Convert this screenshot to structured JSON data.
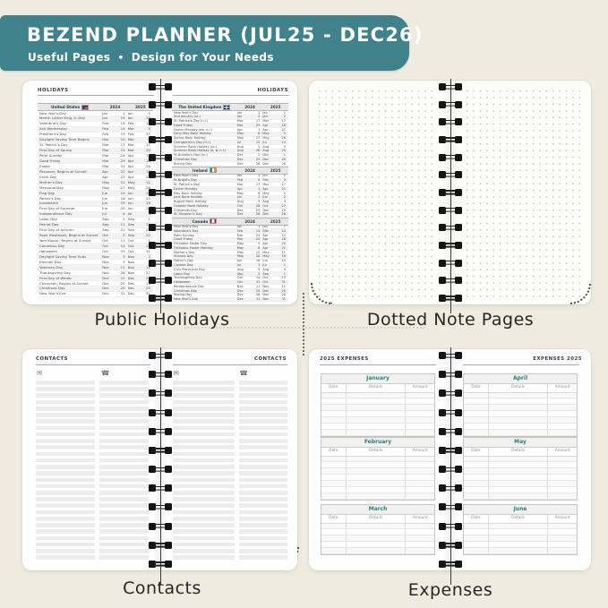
{
  "banner": {
    "title": "BEZEND PLANNER (JUL25 - DEC26)",
    "subtitle_left": "Useful Pages",
    "subtitle_sep": "•",
    "subtitle_right": "Design for Your Needs",
    "bg_color": "#3f828b",
    "text_color": "#ffffff"
  },
  "captions": {
    "holidays": "Public Holidays",
    "dotted": "Dotted Note Pages",
    "contacts": "Contacts",
    "expenses": "Expenses"
  },
  "holidays_spread": {
    "left_header": "HOLIDAYS",
    "right_header": "HOLIDAYS",
    "year_cols": [
      "2024",
      "2025"
    ],
    "tables": [
      {
        "country": "United States",
        "flag": "us-flag-icon",
        "flag_class": "flag-us",
        "rows": [
          [
            "New Year's Day",
            "Jan",
            "1",
            "Jan",
            "1"
          ],
          [
            "Martin Luther King, Jr. Day",
            "Jan",
            "15",
            "Jan",
            "20"
          ],
          [
            "Valentine's Day",
            "Feb",
            "14",
            "Feb",
            "14"
          ],
          [
            "Ash Wednesday",
            "Feb",
            "14",
            "Mar",
            "5"
          ],
          [
            "President's Day",
            "Feb",
            "19",
            "Feb",
            "17"
          ],
          [
            "Daylight Saving Time Begins",
            "Mar",
            "10",
            "Mar",
            "9"
          ],
          [
            "St. Patrick's Day",
            "Mar",
            "17",
            "Mar",
            "17"
          ],
          [
            "First Day of Spring",
            "Mar",
            "19",
            "Mar",
            "20"
          ],
          [
            "Palm Sunday",
            "Mar",
            "24",
            "Apr",
            "13"
          ],
          [
            "Good Friday",
            "Mar",
            "29",
            "Apr",
            "18"
          ],
          [
            "Easter",
            "Mar",
            "31",
            "Apr",
            "20"
          ],
          [
            "Passover, Begins at Sunset",
            "Apr",
            "22",
            "Apr",
            "12"
          ],
          [
            "Earth Day",
            "Apr",
            "22",
            "Apr",
            "22"
          ],
          [
            "Mother's Day",
            "May",
            "12",
            "May",
            "11"
          ],
          [
            "Memorial Day",
            "May",
            "27",
            "May",
            "26"
          ],
          [
            "Flag Day",
            "Jun",
            "14",
            "Jun",
            "14"
          ],
          [
            "Father's Day",
            "Jun",
            "16",
            "Jun",
            "15"
          ],
          [
            "Juneteenth",
            "Jun",
            "19",
            "Jun",
            "19"
          ],
          [
            "First Day of Summer",
            "Jun",
            "20",
            "Jun",
            "20"
          ],
          [
            "Independence Day",
            "Jul",
            "4",
            "Jul",
            "4"
          ],
          [
            "Labor Day",
            "Sep",
            "2",
            "Sep",
            "1"
          ],
          [
            "Patriot Day",
            "Sep",
            "11",
            "Sep",
            "11"
          ],
          [
            "First Day of Autumn",
            "Sep",
            "22",
            "Sep",
            "22"
          ],
          [
            "Rosh Hashanah, Begins at Sunset",
            "Oct",
            "2",
            "Sep",
            "22"
          ],
          [
            "Yom Kippur, Begins at Sunset",
            "Oct",
            "11",
            "Oct",
            "1"
          ],
          [
            "Columbus Day",
            "Oct",
            "14",
            "Oct",
            "13"
          ],
          [
            "Halloween",
            "Oct",
            "31",
            "Oct",
            "31"
          ],
          [
            "Daylight Saving Time Ends",
            "Nov",
            "3",
            "Nov",
            "2"
          ],
          [
            "Election Day",
            "Nov",
            "5",
            "Nov",
            "4"
          ],
          [
            "Veterans Day",
            "Nov",
            "11",
            "Nov",
            "11"
          ],
          [
            "Thanksgiving Day",
            "Nov",
            "28",
            "Nov",
            "27"
          ],
          [
            "First Day of Winter",
            "Dec",
            "21",
            "Dec",
            "21"
          ],
          [
            "Chanukah, Begins at Sunset",
            "Dec",
            "25",
            "Dec",
            "14"
          ],
          [
            "Christmas Day",
            "Dec",
            "25",
            "Dec",
            "25"
          ],
          [
            "New Year's Eve",
            "Dec",
            "31",
            "Dec",
            "31"
          ]
        ]
      },
      {
        "country": "The United Kingdom",
        "flag": "uk-flag-icon",
        "flag_class": "flag-uk",
        "rows": [
          [
            "New Year's Day",
            "Jan",
            "1",
            "Jan",
            "1"
          ],
          [
            "2nd January (sc.)",
            "Jan",
            "2",
            "Jan",
            "2"
          ],
          [
            "St. Patrick's Day (n.i.)",
            "Mar",
            "17",
            "Mar",
            "17"
          ],
          [
            "Good Friday",
            "Mar",
            "29",
            "Apr",
            "18"
          ],
          [
            "Easter Monday (ew. n.i.)",
            "Apr",
            "1",
            "Apr",
            "21"
          ],
          [
            "Early May Bank Holiday",
            "May",
            "6",
            "May",
            "5"
          ],
          [
            "Spring Bank Holiday",
            "May",
            "27",
            "May",
            "26"
          ],
          [
            "Orangemen's Day (n.i.)",
            "Jul",
            "12",
            "Jul",
            "14"
          ],
          [
            "Summer Bank Holiday (sc.)",
            "Aug",
            "5",
            "Aug",
            "4"
          ],
          [
            "Summer Bank Holiday (e. w. n.i.)",
            "Aug",
            "26",
            "Aug",
            "25"
          ],
          [
            "St Andrew's Day (sc.)",
            "Dec",
            "2",
            "Dec",
            "1"
          ],
          [
            "Christmas Day",
            "Dec",
            "25",
            "Dec",
            "25"
          ],
          [
            "Boxing Day",
            "Dec",
            "26",
            "Dec",
            "26"
          ]
        ]
      },
      {
        "country": "Ireland",
        "flag": "ireland-flag-icon",
        "flag_class": "flag-ie",
        "rows": [
          [
            "New Year's Day",
            "Jan",
            "1",
            "Jan",
            "1"
          ],
          [
            "St Brigid's Day",
            "Feb",
            "5",
            "Feb",
            "3"
          ],
          [
            "St. Patrick's Day",
            "Mar",
            "17",
            "Mar",
            "17"
          ],
          [
            "Easter Monday",
            "Apr",
            "1",
            "Apr",
            "21"
          ],
          [
            "May Bank Holiday",
            "May",
            "6",
            "May",
            "5"
          ],
          [
            "June Bank Holiday",
            "Jun",
            "3",
            "Jun",
            "2"
          ],
          [
            "August Bank Holiday",
            "Aug",
            "5",
            "Aug",
            "4"
          ],
          [
            "October Bank Holiday",
            "Oct",
            "28",
            "Oct",
            "27"
          ],
          [
            "Christmas Day",
            "Dec",
            "25",
            "Dec",
            "25"
          ],
          [
            "St. Stephen's Day",
            "Dec",
            "26",
            "Dec",
            "26"
          ]
        ]
      },
      {
        "country": "Canada",
        "flag": "canada-flag-icon",
        "flag_class": "flag-ca",
        "rows": [
          [
            "New Year's Day",
            "Jan",
            "1",
            "Jan",
            "1"
          ],
          [
            "Valentine's Day",
            "Feb",
            "14",
            "Feb",
            "14"
          ],
          [
            "Palm Sunday",
            "Mar",
            "24",
            "Apr",
            "13"
          ],
          [
            "Good Friday",
            "Mar",
            "29",
            "Apr",
            "18"
          ],
          [
            "Orthodox Easter Day",
            "May",
            "5",
            "Apr",
            "20"
          ],
          [
            "Orthodox Easter Monday",
            "May",
            "6",
            "Apr",
            "21"
          ],
          [
            "Mother's Day",
            "May",
            "12",
            "May",
            "11"
          ],
          [
            "Victoria Day",
            "May",
            "20",
            "May",
            "19"
          ],
          [
            "Father's Day",
            "Jun",
            "16",
            "Jun",
            "15"
          ],
          [
            "Canada Day",
            "Jul",
            "1",
            "Jul",
            "1"
          ],
          [
            "Civic/Provincial Day",
            "Aug",
            "5",
            "Aug",
            "4"
          ],
          [
            "Labor Day",
            "Sep",
            "2",
            "Sep",
            "1"
          ],
          [
            "Thanksgiving Day",
            "Oct",
            "14",
            "Oct",
            "13"
          ],
          [
            "Halloween",
            "Oct",
            "31",
            "Oct",
            "31"
          ],
          [
            "Remembrance Day",
            "Nov",
            "11",
            "Nov",
            "11"
          ],
          [
            "Christmas Day",
            "Dec",
            "25",
            "Dec",
            "25"
          ],
          [
            "Boxing Day",
            "Dec",
            "26",
            "Dec",
            "26"
          ],
          [
            "New Year's Eve",
            "Dec",
            "31",
            "Dec",
            "31"
          ]
        ]
      }
    ]
  },
  "contacts_spread": {
    "left_header": "CONTACTS",
    "right_header": "CONTACTS",
    "icons": [
      "envelope-icon",
      "phone-icon"
    ],
    "envelope_glyph": "✉",
    "phone_glyph": "☎",
    "stripe_rows": 28
  },
  "expenses_spread": {
    "left_header": "2025 EXPENSES",
    "right_header": "EXPENSES 2025",
    "columns": [
      "Date",
      "Details",
      "Amount"
    ],
    "months_left": [
      "January",
      "February",
      "March"
    ],
    "months_right": [
      "April",
      "May",
      "June"
    ],
    "row_counts": [
      7,
      7,
      5
    ],
    "month_color": "#2e7d80"
  },
  "colors": {
    "background": "#efebe0",
    "banner": "#3f828b",
    "page": "#fefefe",
    "caption_text": "#262626",
    "month_teal": "#2e7d80"
  }
}
